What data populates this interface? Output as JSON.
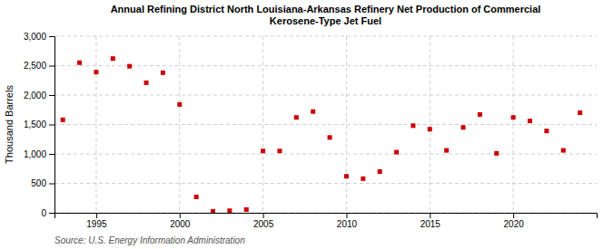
{
  "chart_data": {
    "type": "scatter",
    "title": "Annual Refining District North Louisiana-Arkansas Refinery Net Production of Commercial\nKerosene-Type Jet Fuel",
    "y_label": "Thousand Barrels",
    "annotations": [
      "Source: U.S. Energy Information Administration"
    ],
    "x": [
      1993,
      1994,
      1995,
      1996,
      1997,
      1998,
      1999,
      2000,
      2001,
      2002,
      2003,
      2004,
      2005,
      2006,
      2007,
      2008,
      2009,
      2010,
      2011,
      2012,
      2013,
      2014,
      2015,
      2016,
      2017,
      2018,
      2019,
      2020,
      2021,
      2022,
      2023,
      2024
    ],
    "values": [
      1580,
      2550,
      2390,
      2620,
      2490,
      2210,
      2380,
      1840,
      270,
      25,
      35,
      55,
      1050,
      1050,
      1620,
      1720,
      1280,
      620,
      580,
      700,
      1030,
      1480,
      1420,
      1060,
      1450,
      1670,
      1010,
      1620,
      1560,
      1390,
      1060,
      1700
    ],
    "color": "#cc0000",
    "marker": "square",
    "xlim": [
      1992.5,
      2025
    ],
    "xticks": [
      1995,
      2000,
      2005,
      2010,
      2015,
      2020
    ],
    "ylim": [
      0,
      3000
    ],
    "yticks": [
      0,
      500,
      {
        "value": 1000,
        "label": "1,000"
      },
      {
        "value": 1500,
        "label": "1,500"
      },
      {
        "value": 2000,
        "label": "2,000"
      },
      {
        "value": 2500,
        "label": "2,500"
      },
      {
        "value": 3000,
        "label": "3,000"
      }
    ],
    "grid": true
  }
}
